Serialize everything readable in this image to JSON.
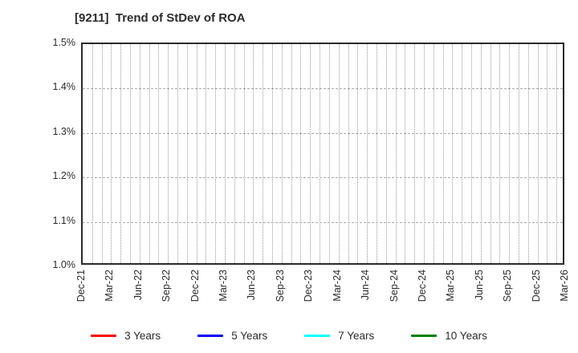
{
  "title": "[9211]  Trend of StDev of ROA",
  "chart_data": {
    "type": "line",
    "title": "[9211]  Trend of StDev of ROA",
    "xlabel": "",
    "ylabel": "",
    "ylim": [
      1.0,
      1.5
    ],
    "y_ticks": [
      1.0,
      1.1,
      1.2,
      1.3,
      1.4,
      1.5
    ],
    "y_tick_labels": [
      "1.0%",
      "1.1%",
      "1.2%",
      "1.3%",
      "1.4%",
      "1.5%"
    ],
    "x_tick_labels": [
      "Dec-21",
      "Mar-22",
      "Jun-22",
      "Sep-22",
      "Dec-22",
      "Mar-23",
      "Jun-23",
      "Sep-23",
      "Dec-23",
      "Mar-24",
      "Jun-24",
      "Sep-24",
      "Dec-24",
      "Mar-25",
      "Jun-25",
      "Sep-25",
      "Dec-25",
      "Mar-26"
    ],
    "x_tick_interval_months": 3,
    "total_months": 51,
    "grid": "on",
    "minor_vgrid": "monthly",
    "legend_position": "bottom",
    "series": [
      {
        "name": "3 Years",
        "color": "#ff0000",
        "values": []
      },
      {
        "name": "5 Years",
        "color": "#0000ff",
        "values": []
      },
      {
        "name": "7 Years",
        "color": "#00ffff",
        "values": []
      },
      {
        "name": "10 Years",
        "color": "#008000",
        "values": []
      }
    ],
    "plot_is_empty": true
  },
  "colors": {
    "background": "#ffffff",
    "axis_border": "#2b2b2b",
    "grid_vertical": "#9a9a9a",
    "grid_horizontal": "#aaaaaa",
    "text": "#2b2b2b"
  }
}
